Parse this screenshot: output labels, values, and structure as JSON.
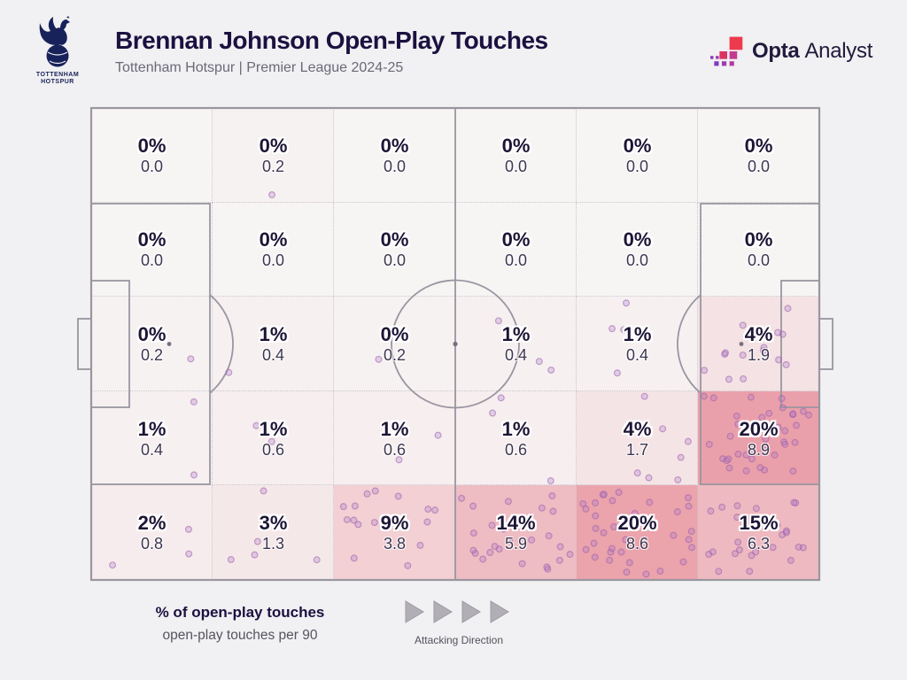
{
  "header": {
    "title": "Brennan Johnson Open-Play Touches",
    "subtitle": "Tottenham Hotspur | Premier League 2024-25",
    "brand_bold": "Opta",
    "brand_regular": "Analyst"
  },
  "crest": {
    "line1": "TOTTENHAM",
    "line2": "HOTSPUR"
  },
  "legend": {
    "primary": "% of open-play touches",
    "secondary": "open-play touches per 90",
    "direction_label": "Attacking Direction"
  },
  "colors": {
    "page_bg": "#f1f0f2",
    "pitch_line": "#9a96a0",
    "grid_dotted": "#c9c5cd",
    "heat_zero": "#f7f4f4",
    "heat_max": "#ea9fa9",
    "heat_max_value": 9,
    "title_text": "#1b1140",
    "value_text": "#1d1535",
    "touch_dot_fill": "rgba(167,118,196,0.28)",
    "touch_dot_stroke": "rgba(158,92,172,0.55)",
    "club_navy": "#18225a",
    "opta_red": "#ee3a4e"
  },
  "chart_data": {
    "type": "heatmap",
    "title": "Brennan Johnson Open-Play Touches",
    "subtitle": "Tottenham Hotspur | Premier League 2024-25",
    "rows": 5,
    "cols": 6,
    "attacking_direction": "right",
    "value_label": "% of open-play touches",
    "secondary_label": "open-play touches per 90",
    "percent": [
      [
        "0%",
        "0%",
        "0%",
        "0%",
        "0%",
        "0%"
      ],
      [
        "0%",
        "0%",
        "0%",
        "0%",
        "0%",
        "0%"
      ],
      [
        "0%",
        "1%",
        "0%",
        "1%",
        "1%",
        "4%"
      ],
      [
        "1%",
        "1%",
        "1%",
        "1%",
        "4%",
        "20%"
      ],
      [
        "2%",
        "3%",
        "9%",
        "14%",
        "20%",
        "15%"
      ]
    ],
    "per90": [
      [
        0.0,
        0.2,
        0.0,
        0.0,
        0.0,
        0.0
      ],
      [
        0.0,
        0.0,
        0.0,
        0.0,
        0.0,
        0.0
      ],
      [
        0.2,
        0.4,
        0.2,
        0.4,
        0.4,
        1.9
      ],
      [
        0.4,
        0.6,
        0.6,
        0.6,
        1.7,
        8.9
      ],
      [
        0.8,
        1.3,
        3.8,
        5.9,
        8.6,
        6.3
      ]
    ],
    "touch_dot_counts": [
      [
        0,
        1,
        0,
        0,
        0,
        0
      ],
      [
        0,
        0,
        0,
        0,
        0,
        0
      ],
      [
        1,
        2,
        1,
        3,
        4,
        14
      ],
      [
        2,
        2,
        3,
        3,
        7,
        36
      ],
      [
        3,
        5,
        15,
        24,
        34,
        25
      ]
    ]
  }
}
